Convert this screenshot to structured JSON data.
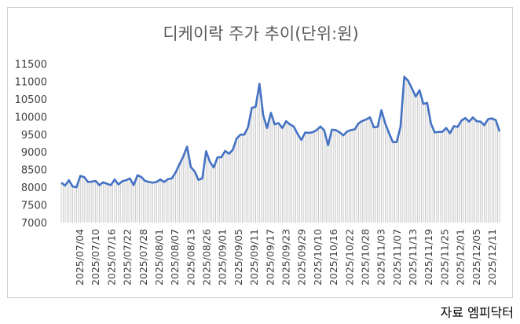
{
  "chart_data": {
    "type": "area",
    "title": "디케이락 주가 추이(단위:원)",
    "xlabel": "",
    "ylabel": "",
    "ylim": [
      7000,
      11500
    ],
    "yticks": [
      7000,
      7500,
      8000,
      8500,
      9000,
      9500,
      10000,
      10500,
      11000,
      11500
    ],
    "grid": false,
    "legend": "none",
    "x_tick_labels": [
      "2025/07/04",
      "2025/07/10",
      "2025/07/16",
      "2025/07/22",
      "2025/07/28",
      "2025/08/01",
      "2025/08/07",
      "2025/08/13",
      "2025/08/26",
      "2025/09/01",
      "2025/09/05",
      "2025/09/11",
      "2025/09/17",
      "2025/09/23",
      "2025/09/29",
      "2025/10/10",
      "2025/10/16",
      "2025/10/22",
      "2025/10/28",
      "2025/11/03",
      "2025/11/07",
      "2025/11/13",
      "2025/11/19",
      "2025/11/25",
      "2025/12/01",
      "2025/12/05",
      "2025/12/11"
    ],
    "series": [
      {
        "line_color": "#4472c4",
        "fill": "vertical gray hatch lines",
        "values": [
          8130,
          8050,
          8200,
          8020,
          8000,
          8320,
          8290,
          8150,
          8160,
          8180,
          8060,
          8140,
          8100,
          8060,
          8220,
          8080,
          8170,
          8200,
          8250,
          8060,
          8340,
          8290,
          8180,
          8150,
          8130,
          8150,
          8220,
          8150,
          8230,
          8250,
          8420,
          8650,
          8870,
          9150,
          8570,
          8450,
          8210,
          8250,
          9020,
          8720,
          8560,
          8850,
          8850,
          9030,
          8950,
          9060,
          9380,
          9490,
          9490,
          9700,
          10250,
          10280,
          10930,
          10030,
          9680,
          10110,
          9780,
          9820,
          9680,
          9870,
          9780,
          9720,
          9510,
          9340,
          9550,
          9540,
          9560,
          9620,
          9720,
          9610,
          9190,
          9630,
          9620,
          9560,
          9470,
          9580,
          9620,
          9640,
          9810,
          9880,
          9920,
          9980,
          9700,
          9710,
          10180,
          9810,
          9530,
          9280,
          9280,
          9710,
          11130,
          11020,
          10800,
          10570,
          10750,
          10360,
          10390,
          9800,
          9550,
          9570,
          9570,
          9680,
          9530,
          9730,
          9710,
          9890,
          9960,
          9860,
          9980,
          9870,
          9860,
          9760,
          9930,
          9950,
          9900,
          9580
        ]
      }
    ]
  },
  "source_note": "자료 엠피닥터"
}
